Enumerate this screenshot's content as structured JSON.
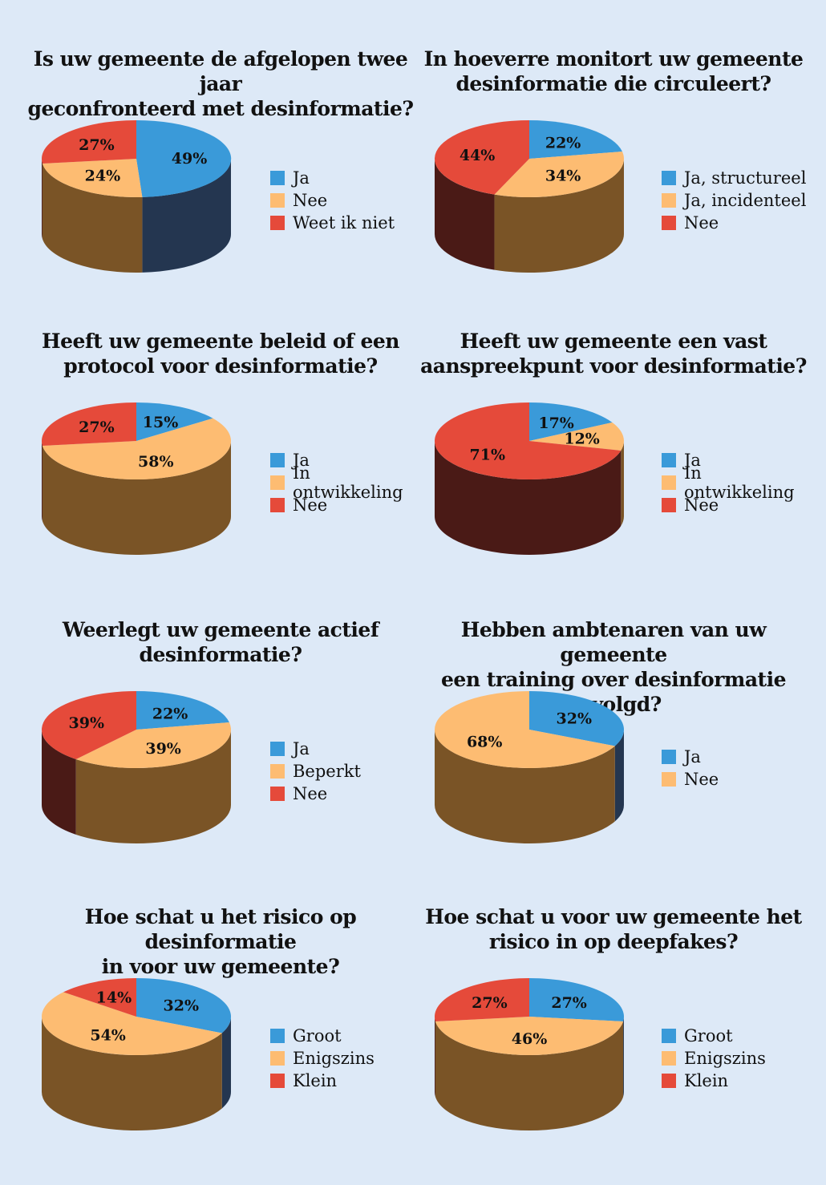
{
  "colors": {
    "blue": "#3a9ad9",
    "orange": "#fdbc72",
    "red": "#e54a3a",
    "blue_dark": "#243650",
    "orange_dark": "#7a5426",
    "red_dark": "#4a1a16"
  },
  "chart_data": [
    {
      "type": "pie",
      "title": [
        "Is uw gemeente de afgelopen twee jaar",
        "geconfronteerd met desinformatie?"
      ],
      "slices": [
        {
          "label": "Ja",
          "value": 49,
          "text": "49%",
          "color": "blue"
        },
        {
          "label": "Nee",
          "value": 24,
          "text": "24%",
          "color": "orange"
        },
        {
          "label": "Weet ik niet",
          "value": 27,
          "text": "27%",
          "color": "red"
        }
      ]
    },
    {
      "type": "pie",
      "title": [
        "In hoeverre monitort uw gemeente",
        "desinformatie die circuleert?"
      ],
      "slices": [
        {
          "label": "Ja, structureel",
          "value": 22,
          "text": "22%",
          "color": "blue"
        },
        {
          "label": "Ja, incidenteel",
          "value": 34,
          "text": "34%",
          "color": "orange"
        },
        {
          "label": "Nee",
          "value": 44,
          "text": "44%",
          "color": "red"
        }
      ]
    },
    {
      "type": "pie",
      "title": [
        "Heeft uw gemeente beleid of een",
        "protocol voor desinformatie?"
      ],
      "slices": [
        {
          "label": "Ja",
          "value": 15,
          "text": "15%",
          "color": "blue"
        },
        {
          "label": "In ontwikkeling",
          "value": 58,
          "text": "58%",
          "color": "orange"
        },
        {
          "label": "Nee",
          "value": 27,
          "text": "27%",
          "color": "red"
        }
      ]
    },
    {
      "type": "pie",
      "title": [
        "Heeft uw gemeente een vast",
        "aanspreekpunt voor desinformatie?"
      ],
      "slices": [
        {
          "label": "Ja",
          "value": 17,
          "text": "17%",
          "color": "blue"
        },
        {
          "label": "In ontwikkeling",
          "value": 12,
          "text": "12%",
          "color": "orange"
        },
        {
          "label": "Nee",
          "value": 71,
          "text": "71%",
          "color": "red"
        }
      ]
    },
    {
      "type": "pie",
      "title": [
        "Weerlegt uw gemeente actief",
        "desinformatie?"
      ],
      "slices": [
        {
          "label": "Ja",
          "value": 22,
          "text": "22%",
          "color": "blue"
        },
        {
          "label": "Beperkt",
          "value": 39,
          "text": "39%",
          "color": "orange"
        },
        {
          "label": "Nee",
          "value": 39,
          "text": "39%",
          "color": "red"
        }
      ]
    },
    {
      "type": "pie",
      "title": [
        "Hebben ambtenaren van uw gemeente",
        "een training over desinformatie gevolgd?"
      ],
      "slices": [
        {
          "label": "Ja",
          "value": 32,
          "text": "32%",
          "color": "blue"
        },
        {
          "label": "Nee",
          "value": 68,
          "text": "68%",
          "color": "orange"
        }
      ]
    },
    {
      "type": "pie",
      "title": [
        "Hoe schat u het risico op desinformatie",
        "in voor uw gemeente?"
      ],
      "slices": [
        {
          "label": "Groot",
          "value": 32,
          "text": "32%",
          "color": "blue"
        },
        {
          "label": "Enigszins",
          "value": 54,
          "text": "54%",
          "color": "orange"
        },
        {
          "label": "Klein",
          "value": 14,
          "text": "14%",
          "color": "red"
        }
      ]
    },
    {
      "type": "pie",
      "title": [
        "Hoe schat u voor uw gemeente het",
        "risico in op deepfakes?"
      ],
      "slices": [
        {
          "label": "Groot",
          "value": 27,
          "text": "27%",
          "color": "blue"
        },
        {
          "label": "Enigszins",
          "value": 46,
          "text": "46%",
          "color": "orange"
        },
        {
          "label": "Klein",
          "value": 27,
          "text": "27%",
          "color": "red"
        }
      ]
    }
  ]
}
